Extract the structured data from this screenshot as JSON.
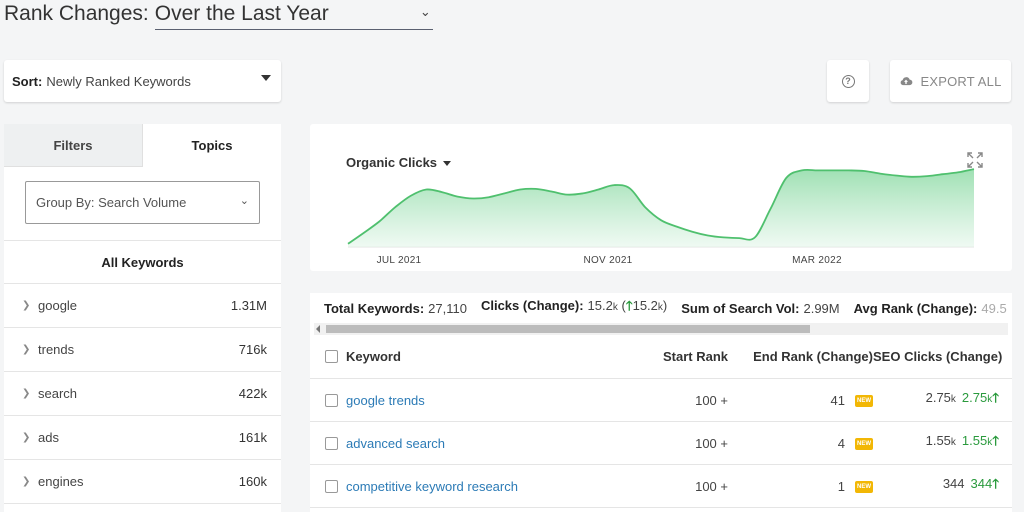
{
  "header": {
    "title_label": "Rank Changes:",
    "period_selected": "Over the Last Year"
  },
  "sort": {
    "label": "Sort:",
    "value": "Newly Ranked Keywords"
  },
  "toolbar": {
    "help_icon": "?",
    "export_label": "EXPORT ALL"
  },
  "left_panel": {
    "tabs": [
      {
        "label": "Filters",
        "active": false
      },
      {
        "label": "Topics",
        "active": true
      }
    ],
    "group_by": "Group By: Search Volume",
    "all_keywords_label": "All Keywords",
    "topics": [
      {
        "name": "google",
        "volume": "1.31M"
      },
      {
        "name": "trends",
        "volume": "716k"
      },
      {
        "name": "search",
        "volume": "422k"
      },
      {
        "name": "ads",
        "volume": "161k"
      },
      {
        "name": "engines",
        "volume": "160k"
      }
    ]
  },
  "chart": {
    "metric_label": "Organic Clicks",
    "accent_color": "#6ccf86",
    "x_ticks": [
      "JUL 2021",
      "NOV 2021",
      "MAR 2022"
    ]
  },
  "chart_data": {
    "type": "area",
    "title": "Organic Clicks",
    "x_tick_labels": [
      "JUL 2021",
      "NOV 2021",
      "MAR 2022"
    ],
    "x": [
      0,
      1,
      2,
      3,
      4,
      5,
      6,
      7,
      8,
      9,
      10,
      11,
      12,
      13,
      14,
      15,
      16,
      17,
      18,
      19,
      20,
      21,
      22,
      23,
      24,
      25,
      26,
      27,
      28,
      29,
      30,
      31,
      32,
      33,
      34,
      35,
      36,
      37,
      38,
      39,
      40
    ],
    "values": [
      0.05,
      0.22,
      0.4,
      0.62,
      0.8,
      0.9,
      0.86,
      0.79,
      0.76,
      0.78,
      0.84,
      0.9,
      0.91,
      0.87,
      0.82,
      0.84,
      0.9,
      0.97,
      0.92,
      0.62,
      0.42,
      0.32,
      0.24,
      0.18,
      0.15,
      0.14,
      0.15,
      0.6,
      1.08,
      1.2,
      1.2,
      1.2,
      1.2,
      1.19,
      1.15,
      1.12,
      1.1,
      1.11,
      1.14,
      1.17,
      1.22
    ],
    "ylim": [
      0,
      1.3
    ],
    "grid": false,
    "legend": "none"
  },
  "summary": {
    "total_keywords_label": "Total Keywords:",
    "total_keywords_value": "27,110",
    "clicks_label": "Clicks (Change):",
    "clicks_value": "15.2",
    "clicks_unit": "k",
    "clicks_open": "(",
    "clicks_arrow": "🡑",
    "clicks_change": "15.2",
    "clicks_change_unit": "k",
    "clicks_close": ")",
    "sum_vol_label": "Sum of Search Vol:",
    "sum_vol_value": "2.99M",
    "avg_rank_label": "Avg Rank (Change):",
    "avg_rank_value": "49.5"
  },
  "table": {
    "headers": {
      "keyword": "Keyword",
      "start_rank": "Start Rank",
      "end_rank": "End Rank (Change)",
      "seo_clicks": "SEO Clicks (Change)"
    },
    "new_badge": "NEW",
    "rows": [
      {
        "keyword": "google trends",
        "start_rank": "100 +",
        "end_rank": "41",
        "seo_clicks": "2.75",
        "seo_clicks_unit": "k",
        "seo_change": "2.75",
        "seo_change_unit": "k",
        "arrow": "🡑"
      },
      {
        "keyword": "advanced search",
        "start_rank": "100 +",
        "end_rank": "4",
        "seo_clicks": "1.55",
        "seo_clicks_unit": "k",
        "seo_change": "1.55",
        "seo_change_unit": "k",
        "arrow": "🡑"
      },
      {
        "keyword": "competitive keyword research",
        "start_rank": "100 +",
        "end_rank": "1",
        "seo_clicks": "344",
        "seo_clicks_unit": "",
        "seo_change": "344",
        "seo_change_unit": "",
        "arrow": "🡑"
      }
    ]
  }
}
